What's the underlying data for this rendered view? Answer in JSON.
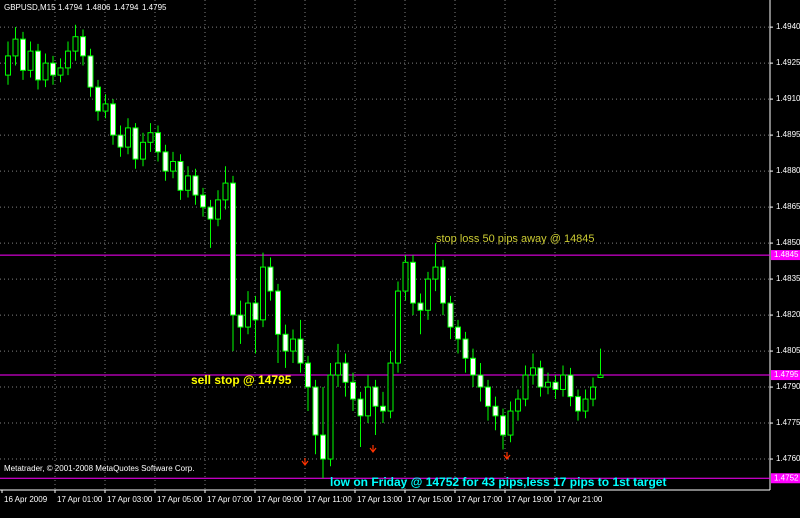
{
  "chart_data": {
    "type": "candlestick",
    "title": "GBPUSD,M15",
    "candles": [
      [
        1.492,
        1.4934,
        1.4916,
        1.4928
      ],
      [
        1.4928,
        1.494,
        1.4924,
        1.4935
      ],
      [
        1.4935,
        1.4938,
        1.4918,
        1.4922
      ],
      [
        1.4922,
        1.4934,
        1.4919,
        1.493
      ],
      [
        1.493,
        1.4933,
        1.4914,
        1.4918
      ],
      [
        1.4918,
        1.4929,
        1.4915,
        1.4925
      ],
      [
        1.4925,
        1.4928,
        1.4916,
        1.492
      ],
      [
        1.492,
        1.4927,
        1.4917,
        1.4923
      ],
      [
        1.4923,
        1.4934,
        1.492,
        1.493
      ],
      [
        1.493,
        1.4941,
        1.4926,
        1.4936
      ],
      [
        1.4936,
        1.4939,
        1.4924,
        1.4928
      ],
      [
        1.4928,
        1.4931,
        1.4911,
        1.4915
      ],
      [
        1.4915,
        1.4918,
        1.4901,
        1.4905
      ],
      [
        1.4905,
        1.4912,
        1.4902,
        1.4908
      ],
      [
        1.4908,
        1.491,
        1.4891,
        1.4895
      ],
      [
        1.4895,
        1.4899,
        1.4886,
        1.489
      ],
      [
        1.489,
        1.4902,
        1.4887,
        1.4898
      ],
      [
        1.4898,
        1.49,
        1.4881,
        1.4885
      ],
      [
        1.4885,
        1.4896,
        1.4882,
        1.4892
      ],
      [
        1.4892,
        1.49,
        1.4888,
        1.4896
      ],
      [
        1.4896,
        1.4899,
        1.4884,
        1.4888
      ],
      [
        1.4888,
        1.4891,
        1.4876,
        1.488
      ],
      [
        1.488,
        1.4888,
        1.4877,
        1.4884
      ],
      [
        1.4884,
        1.4887,
        1.4868,
        1.4872
      ],
      [
        1.4872,
        1.4882,
        1.4869,
        1.4878
      ],
      [
        1.4878,
        1.4881,
        1.4866,
        1.487
      ],
      [
        1.487,
        1.4873,
        1.4861,
        1.4865
      ],
      [
        1.4865,
        1.4868,
        1.4848,
        1.486
      ],
      [
        1.486,
        1.4872,
        1.4857,
        1.4868
      ],
      [
        1.4868,
        1.4882,
        1.4864,
        1.4875
      ],
      [
        1.4875,
        1.4878,
        1.4805,
        1.482
      ],
      [
        1.482,
        1.4826,
        1.4808,
        1.4815
      ],
      [
        1.4815,
        1.483,
        1.4812,
        1.4825
      ],
      [
        1.4825,
        1.4828,
        1.4804,
        1.4818
      ],
      [
        1.4818,
        1.4846,
        1.4815,
        1.484
      ],
      [
        1.484,
        1.4844,
        1.4826,
        1.483
      ],
      [
        1.483,
        1.4833,
        1.48,
        1.4812
      ],
      [
        1.4812,
        1.4816,
        1.4798,
        1.4805
      ],
      [
        1.4805,
        1.4814,
        1.48,
        1.481
      ],
      [
        1.481,
        1.4818,
        1.4796,
        1.48
      ],
      [
        1.48,
        1.4803,
        1.478,
        1.479
      ],
      [
        1.479,
        1.4793,
        1.4762,
        1.477
      ],
      [
        1.477,
        1.479,
        1.4752,
        1.476
      ],
      [
        1.476,
        1.48,
        1.4757,
        1.4795
      ],
      [
        1.4795,
        1.4808,
        1.479,
        1.48
      ],
      [
        1.48,
        1.4804,
        1.4786,
        1.4792
      ],
      [
        1.4792,
        1.4796,
        1.478,
        1.4785
      ],
      [
        1.4785,
        1.4788,
        1.4765,
        1.4778
      ],
      [
        1.4778,
        1.4795,
        1.4775,
        1.479
      ],
      [
        1.479,
        1.4793,
        1.477,
        1.4782
      ],
      [
        1.4782,
        1.4788,
        1.4775,
        1.478
      ],
      [
        1.478,
        1.4805,
        1.4777,
        1.48
      ],
      [
        1.48,
        1.4834,
        1.4796,
        1.483
      ],
      [
        1.483,
        1.4845,
        1.4826,
        1.4842
      ],
      [
        1.4842,
        1.4845,
        1.482,
        1.4825
      ],
      [
        1.4825,
        1.4829,
        1.4812,
        1.4822
      ],
      [
        1.4822,
        1.4838,
        1.4818,
        1.4835
      ],
      [
        1.4835,
        1.485,
        1.483,
        1.484
      ],
      [
        1.484,
        1.4843,
        1.482,
        1.4825
      ],
      [
        1.4825,
        1.4828,
        1.481,
        1.4815
      ],
      [
        1.4815,
        1.4818,
        1.4804,
        1.481
      ],
      [
        1.481,
        1.4813,
        1.4796,
        1.4802
      ],
      [
        1.4802,
        1.4806,
        1.479,
        1.4795
      ],
      [
        1.4795,
        1.48,
        1.4784,
        1.479
      ],
      [
        1.479,
        1.4793,
        1.4776,
        1.4782
      ],
      [
        1.4782,
        1.4786,
        1.4772,
        1.4778
      ],
      [
        1.4778,
        1.4781,
        1.4764,
        1.477
      ],
      [
        1.477,
        1.4784,
        1.4767,
        1.478
      ],
      [
        1.478,
        1.4789,
        1.4776,
        1.4785
      ],
      [
        1.4785,
        1.4799,
        1.4782,
        1.4795
      ],
      [
        1.4795,
        1.4804,
        1.4791,
        1.4798
      ],
      [
        1.4798,
        1.4801,
        1.4786,
        1.479
      ],
      [
        1.479,
        1.4796,
        1.4787,
        1.4792
      ],
      [
        1.4792,
        1.4795,
        1.4785,
        1.4789
      ],
      [
        1.4789,
        1.4799,
        1.4786,
        1.4795
      ],
      [
        1.4795,
        1.4798,
        1.4782,
        1.4786
      ],
      [
        1.4786,
        1.4789,
        1.4776,
        1.478
      ],
      [
        1.478,
        1.4789,
        1.4777,
        1.4785
      ],
      [
        1.4785,
        1.4794,
        1.4782,
        1.479
      ],
      [
        1.4794,
        1.4806,
        1.4794,
        1.4795
      ]
    ],
    "bull_color": "#000000",
    "bear_color": "#ffffff",
    "line_color": "#00ff00",
    "ylim": [
      1.47471,
      1.49438
    ],
    "yticks": [
      {
        "value": 1.494,
        "label": "1.4940"
      },
      1.4925,
      {
        "value": 1.491,
        "label": "1.4910"
      },
      1.4895,
      {
        "value": 1.488,
        "label": "1.4880"
      },
      1.4865,
      {
        "value": 1.485,
        "label": "1.4850"
      },
      1.4835,
      {
        "value": 1.482,
        "label": "1.4820"
      },
      1.4805,
      {
        "value": 1.479,
        "label": "1.4790"
      },
      1.4775,
      {
        "value": 1.476,
        "label": "1.4760"
      }
    ],
    "xtick_labels": [
      "16 Apr 2009",
      "17 Apr 01:00",
      "17 Apr 03:00",
      "17 Apr 05:00",
      "17 Apr 07:00",
      "17 Apr 09:00",
      "17 Apr 11:00",
      "17 Apr 13:00",
      "17 Apr 15:00",
      "17 Apr 17:00",
      "17 Apr 19:00",
      "17 Apr 21:00"
    ],
    "grid": true,
    "levels": [
      {
        "value": 1.4845,
        "color": "#ff00ff"
      },
      {
        "value": 1.4795,
        "color": "#ff00ff"
      },
      {
        "value": 1.4752,
        "color": "#ff00ff"
      }
    ],
    "annotations": [
      {
        "text": "stop loss 50 pips away @ 14845",
        "color": "#cccc33"
      },
      {
        "text": "sell stop @ 14795",
        "color": "#ffff00"
      },
      {
        "text": "low on Friday @ 14752 for 43 pips,less 17 pips to 1st target",
        "color": "#00ffff"
      }
    ],
    "copyright": "Metatrader, © 2001-2008 MetaQuotes Software Corp."
  }
}
